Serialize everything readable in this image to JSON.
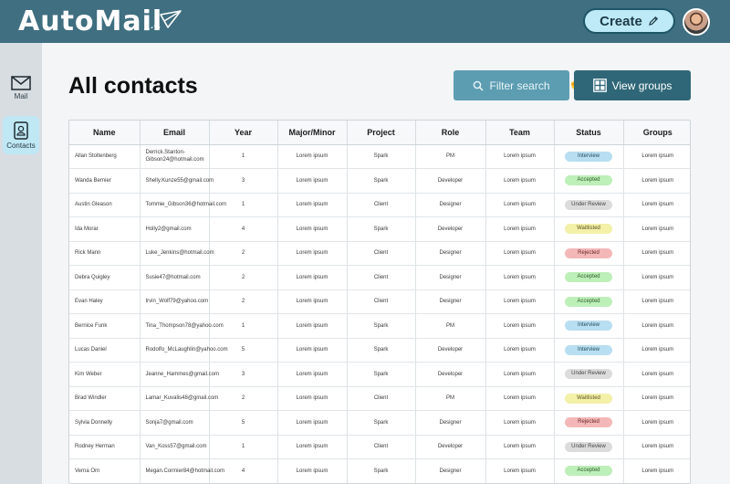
{
  "app": {
    "title": "AutoMail"
  },
  "header": {
    "create_label": "Create"
  },
  "sidebar": {
    "items": [
      {
        "label": "Mail"
      },
      {
        "label": "Contacts"
      }
    ]
  },
  "main": {
    "title": "All contacts",
    "filter_label": "Filter search",
    "groups_label": "View groups"
  },
  "table": {
    "columns": [
      "Name",
      "Email",
      "Year",
      "Major/Minor",
      "Project",
      "Role",
      "Team",
      "Status",
      "Groups"
    ],
    "rows": [
      {
        "name": "Allan Stoltenberg",
        "email": "Derrick.Stanton-Gibson24@hotmail.com",
        "year": "1",
        "major": "Lorem ipsum",
        "project": "Spark",
        "role": "PM",
        "team": "Lorem ipsum",
        "status": "Interview",
        "groups": "Lorem ipsum"
      },
      {
        "name": "Wanda Bernier",
        "email": "Shelly.Kunze55@gmail.com",
        "year": "3",
        "major": "Lorem ipsum",
        "project": "Spark",
        "role": "Developer",
        "team": "Lorem ipsum",
        "status": "Accepted",
        "groups": "Lorem ipsum"
      },
      {
        "name": "Austin Gleason",
        "email": "Tommie_Gibson36@hotmail.com",
        "year": "1",
        "major": "Lorem ipsum",
        "project": "Client",
        "role": "Designer",
        "team": "Lorem ipsum",
        "status": "Under Review",
        "groups": "Lorem ipsum"
      },
      {
        "name": "Ida Morar",
        "email": "Holly2@gmail.com",
        "year": "4",
        "major": "Lorem ipsum",
        "project": "Spark",
        "role": "Developer",
        "team": "Lorem ipsum",
        "status": "Waitlisted",
        "groups": "Lorem ipsum"
      },
      {
        "name": "Rick Mann",
        "email": "Luke_Jenkins@hotmail.com",
        "year": "2",
        "major": "Lorem ipsum",
        "project": "Client",
        "role": "Designer",
        "team": "Lorem ipsum",
        "status": "Rejected",
        "groups": "Lorem ipsum"
      },
      {
        "name": "Debra Quigley",
        "email": "Susie47@hotmail.com",
        "year": "2",
        "major": "Lorem ipsum",
        "project": "Client",
        "role": "Designer",
        "team": "Lorem ipsum",
        "status": "Accepted",
        "groups": "Lorem ipsum"
      },
      {
        "name": "Evan Haley",
        "email": "Irvin_Wolf79@yahoo.com",
        "year": "2",
        "major": "Lorem ipsum",
        "project": "Client",
        "role": "Designer",
        "team": "Lorem ipsum",
        "status": "Accepted",
        "groups": "Lorem ipsum"
      },
      {
        "name": "Bernice Funk",
        "email": "Tina_Thompson78@yahoo.com",
        "year": "1",
        "major": "Lorem ipsum",
        "project": "Spark",
        "role": "PM",
        "team": "Lorem ipsum",
        "status": "Interview",
        "groups": "Lorem ipsum"
      },
      {
        "name": "Lucas Daniel",
        "email": "Rodolfo_McLaughlin@yahoo.com",
        "year": "5",
        "major": "Lorem ipsum",
        "project": "Spark",
        "role": "Developer",
        "team": "Lorem ipsum",
        "status": "Interview",
        "groups": "Lorem ipsum"
      },
      {
        "name": "Kim Weber",
        "email": "Jeanne_Hammes@gmail.com",
        "year": "3",
        "major": "Lorem ipsum",
        "project": "Spark",
        "role": "Developer",
        "team": "Lorem ipsum",
        "status": "Under Review",
        "groups": "Lorem ipsum"
      },
      {
        "name": "Brad Windler",
        "email": "Lamar_Kuvalis48@gmail.com",
        "year": "2",
        "major": "Lorem ipsum",
        "project": "Client",
        "role": "PM",
        "team": "Lorem ipsum",
        "status": "Waitlisted",
        "groups": "Lorem ipsum"
      },
      {
        "name": "Sylvia Donnelly",
        "email": "Sonja7@gmail.com",
        "year": "5",
        "major": "Lorem ipsum",
        "project": "Spark",
        "role": "Designer",
        "team": "Lorem ipsum",
        "status": "Rejected",
        "groups": "Lorem ipsum"
      },
      {
        "name": "Rodney Herman",
        "email": "Van_Koss57@gmail.com",
        "year": "1",
        "major": "Lorem ipsum",
        "project": "Client",
        "role": "Developer",
        "team": "Lorem ipsum",
        "status": "Under Review",
        "groups": "Lorem ipsum"
      },
      {
        "name": "Verna Orn",
        "email": "Megan.Cormier84@hotmail.com",
        "year": "4",
        "major": "Lorem ipsum",
        "project": "Spark",
        "role": "Designer",
        "team": "Lorem ipsum",
        "status": "Accepted",
        "groups": "Lorem ipsum"
      }
    ]
  },
  "status_colors": {
    "Interview": "#b8def1",
    "Accepted": "#bdefb8",
    "Under Review": "#dcdcdc",
    "Waitlisted": "#f3f0a8",
    "Rejected": "#f4b7b7"
  },
  "icons": {
    "logo": "paper-plane-icon",
    "create": "pencil-icon",
    "mail": "envelope-icon",
    "contacts": "contact-card-icon",
    "filter": "search-icon",
    "groups": "grid-icon"
  }
}
